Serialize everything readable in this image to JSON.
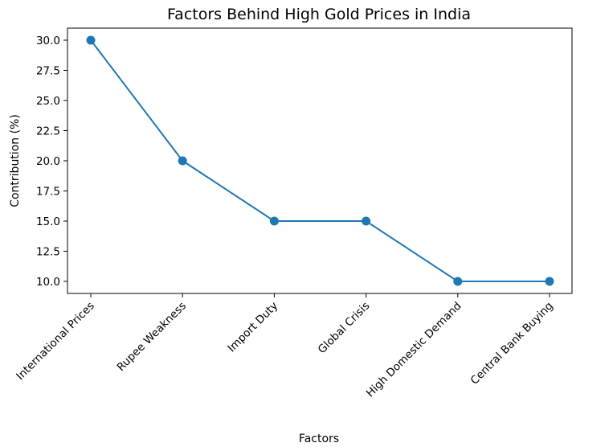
{
  "chart_data": {
    "type": "line",
    "title": "Factors Behind High Gold Prices in India",
    "xlabel": "Factors",
    "ylabel": "Contribution (%)",
    "categories": [
      "International Prices",
      "Rupee Weakness",
      "Import Duty",
      "Global Crisis",
      "High Domestic Demand",
      "Central Bank Buying"
    ],
    "series": [
      {
        "values": [
          30,
          20,
          15,
          15,
          10,
          10
        ]
      }
    ],
    "ylim": [
      9.0,
      31.0
    ],
    "yticks": [
      "10.0",
      "12.5",
      "15.0",
      "17.5",
      "20.0",
      "22.5",
      "25.0",
      "27.5",
      "30.0"
    ],
    "grid": false,
    "marker": "circle",
    "colors": {
      "line": "#1f77b4"
    }
  }
}
